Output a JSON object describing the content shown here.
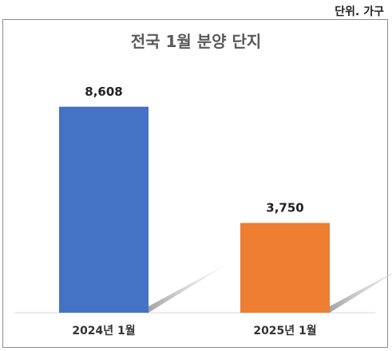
{
  "unit_label": "단위. 가구",
  "chart_data": {
    "type": "bar",
    "title": "전국 1월 분양 단지",
    "categories": [
      "2024년 1월",
      "2025년 1월"
    ],
    "values": [
      8608,
      3750
    ],
    "value_labels": [
      "8,608",
      "3,750"
    ],
    "colors": [
      "#4472C4",
      "#ED7D31"
    ],
    "ylim": [
      0,
      10000
    ],
    "grid": false,
    "legend": "none"
  }
}
